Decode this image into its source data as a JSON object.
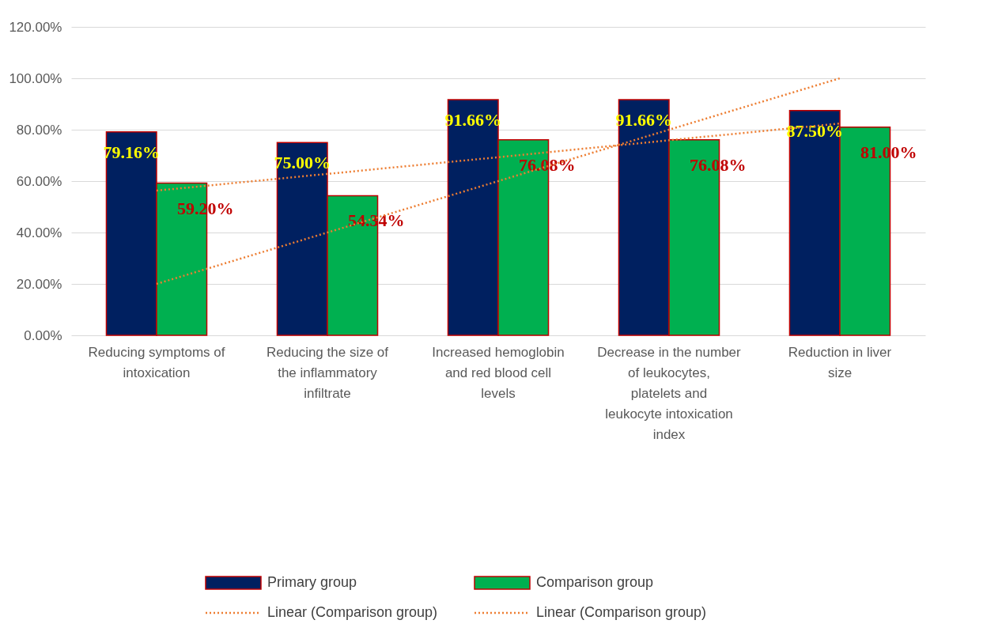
{
  "chart_data": {
    "type": "bar",
    "categories": [
      "Reducing symptoms of intoxication",
      "Reducing the size of the inflammatory infiltrate",
      "Increased hemoglobin and red blood cell levels",
      "Decrease in the number of leukocytes, platelets and leukocyte intoxication index",
      "Reduction in liver size"
    ],
    "series": [
      {
        "name": "Primary group",
        "color": "#002060",
        "values": [
          79.16,
          75.0,
          91.66,
          91.66,
          87.5
        ],
        "value_labels": [
          "79.16%",
          "75.00%",
          "91.66%",
          "91.66%",
          "87.50%"
        ]
      },
      {
        "name": "Comparison group",
        "color": "#00b050",
        "values": [
          59.2,
          54.34,
          76.08,
          76.08,
          81.0
        ],
        "value_labels": [
          "59.20%",
          "54.34%",
          "76.08%",
          "76.08%",
          "81.00%"
        ]
      },
      {
        "name": "Linear (Comparison group)",
        "type": "line",
        "color": "#ed7d31",
        "line_style": "dotted",
        "values": [
          20,
          40,
          60,
          80,
          100
        ]
      },
      {
        "name": "Linear (Comparison group)",
        "type": "line",
        "color": "#ed7d31",
        "line_style": "dotted",
        "values": [
          56.3,
          62.8,
          69.3,
          75.9,
          82.4
        ]
      }
    ],
    "ylim": [
      0,
      120
    ],
    "yticks": [
      {
        "value": 0,
        "label": "0.00%"
      },
      {
        "value": 20,
        "label": "20.00%"
      },
      {
        "value": 40,
        "label": "40.00%"
      },
      {
        "value": 60,
        "label": "60.00%"
      },
      {
        "value": 80,
        "label": "80.00%"
      },
      {
        "value": 100,
        "label": "100.00%"
      },
      {
        "value": 120,
        "label": "120.00%"
      }
    ],
    "grid": "y",
    "legend": "bottom"
  }
}
